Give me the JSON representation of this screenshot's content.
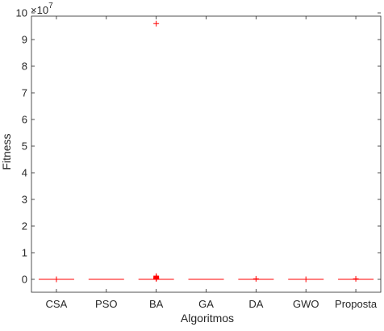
{
  "chart_data": {
    "type": "boxplot",
    "title": "",
    "xlabel": "Algoritmos",
    "ylabel": "Fitness",
    "y_exponent_label": "×10",
    "y_exponent_power": "7",
    "ylim": [
      -0.4,
      10
    ],
    "y_ticks": [
      {
        "value": 0,
        "label": "0"
      },
      {
        "value": 1,
        "label": "1"
      },
      {
        "value": 2,
        "label": "2"
      },
      {
        "value": 3,
        "label": "3"
      },
      {
        "value": 4,
        "label": "4"
      },
      {
        "value": 5,
        "label": "5"
      },
      {
        "value": 6,
        "label": "6"
      },
      {
        "value": 7,
        "label": "7"
      },
      {
        "value": 8,
        "label": "8"
      },
      {
        "value": 9,
        "label": "9"
      },
      {
        "value": 10,
        "label": "10"
      }
    ],
    "categories": [
      "CSA",
      "PSO",
      "BA",
      "GA",
      "DA",
      "GWO",
      "Proposta"
    ],
    "boxes": [
      {
        "category": "CSA",
        "median": 0,
        "outliers": [
          0
        ]
      },
      {
        "category": "PSO",
        "median": 0,
        "outliers": []
      },
      {
        "category": "BA",
        "median": 0,
        "outliers": [
          9.6,
          0.12,
          0.09,
          0.07,
          0.05,
          0.03,
          0.02
        ]
      },
      {
        "category": "GA",
        "median": 0,
        "outliers": []
      },
      {
        "category": "DA",
        "median": 0,
        "outliers": [
          0.02
        ]
      },
      {
        "category": "GWO",
        "median": 0,
        "outliers": [
          0
        ]
      },
      {
        "category": "Proposta",
        "median": 0,
        "outliers": [
          0.02
        ]
      }
    ],
    "colors": {
      "box": "#ff0000",
      "axis": "#262626"
    },
    "grid": false
  }
}
